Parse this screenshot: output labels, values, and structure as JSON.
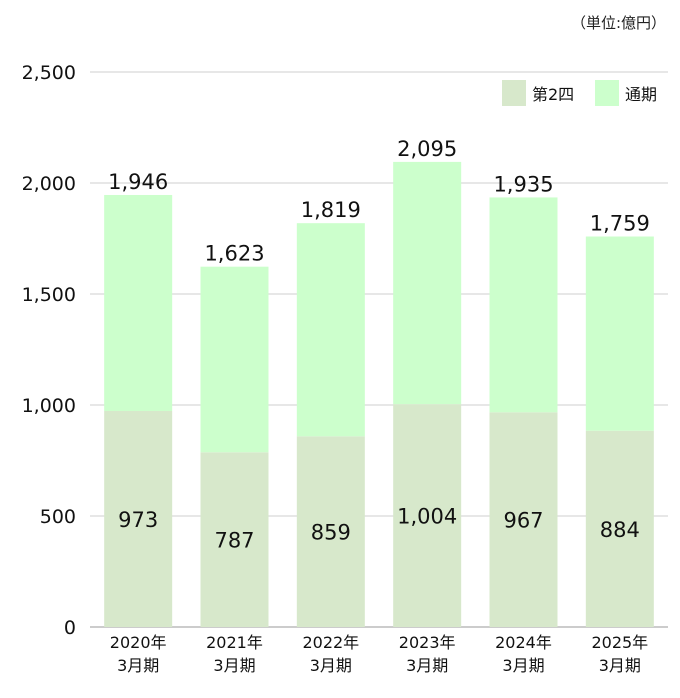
{
  "unit_label": "（単位:億円）",
  "chart_data": {
    "type": "bar",
    "stacked": true,
    "categories": [
      [
        "2020年",
        "3月期"
      ],
      [
        "2021年",
        "3月期"
      ],
      [
        "2022年",
        "3月期"
      ],
      [
        "2023年",
        "3月期"
      ],
      [
        "2024年",
        "3月期"
      ],
      [
        "2025年",
        "3月期"
      ]
    ],
    "series": [
      {
        "name": "第2四",
        "values": [
          973,
          787,
          859,
          1004,
          967,
          884
        ],
        "color": "#d7e8cb"
      },
      {
        "name": "通期",
        "values": [
          973,
          836,
          960,
          1091,
          968,
          875
        ],
        "color": "#ccffcc"
      }
    ],
    "totals": [
      1946,
      1623,
      1819,
      2095,
      1935,
      1759
    ],
    "total_labels": [
      "1,946",
      "1,623",
      "1,819",
      "2,095",
      "1,935",
      "1,759"
    ],
    "segment_labels": [
      "973",
      "787",
      "859",
      "1,004",
      "967",
      "884"
    ],
    "ylim": [
      0,
      2500
    ],
    "yticks": [
      0,
      500,
      1000,
      1500,
      2000,
      2500
    ],
    "ytick_labels": [
      "0",
      "500",
      "1,000",
      "1,500",
      "2,000",
      "2,500"
    ],
    "grid": true,
    "legend_position": "top-right"
  }
}
